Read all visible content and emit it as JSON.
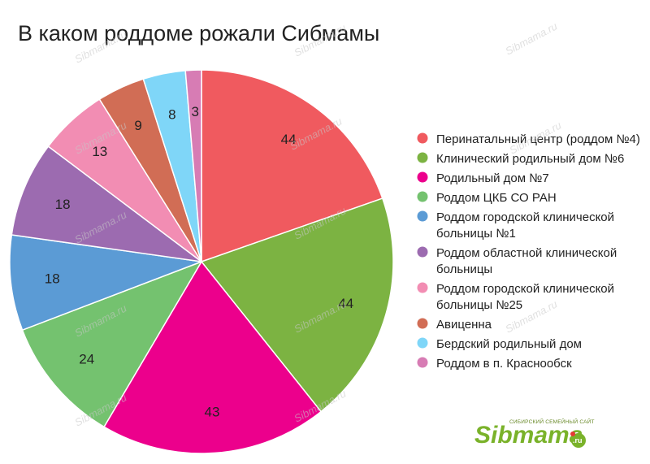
{
  "chart_data": {
    "type": "pie",
    "title": "В каком роддоме рожали Сибмамы",
    "slices": [
      {
        "label": "Перинатальный центр (роддом №4)",
        "value": 44,
        "color": "#f05a5f"
      },
      {
        "label": "Клинический родильный дом №6",
        "value": 44,
        "color": "#7cb342"
      },
      {
        "label": "Родильный дом №7",
        "value": 43,
        "color": "#ec008c"
      },
      {
        "label": "Роддом ЦКБ СО РАН",
        "value": 24,
        "color": "#74c26f"
      },
      {
        "label": "Роддом городской клинической больницы №1",
        "value": 18,
        "color": "#5b9bd5"
      },
      {
        "label": "Роддом областной клинической больницы",
        "value": 18,
        "color": "#9c6bb0"
      },
      {
        "label": "Роддом городской клинической больницы №25",
        "value": 13,
        "color": "#f28db3"
      },
      {
        "label": "Авиценна",
        "value": 9,
        "color": "#d16d55"
      },
      {
        "label": "Бердский родильный дом",
        "value": 8,
        "color": "#7fd6f8"
      },
      {
        "label": "Роддом в п. Краснообск",
        "value": 3,
        "color": "#d77cb4"
      }
    ],
    "legend_position": "right"
  },
  "watermark": "Sibmama.ru",
  "logo": {
    "subtitle": "СИБИРСКИЙ СЕМЕЙНЫЙ САЙТ",
    "main": "Sibmama",
    "suffix": ".ru"
  }
}
